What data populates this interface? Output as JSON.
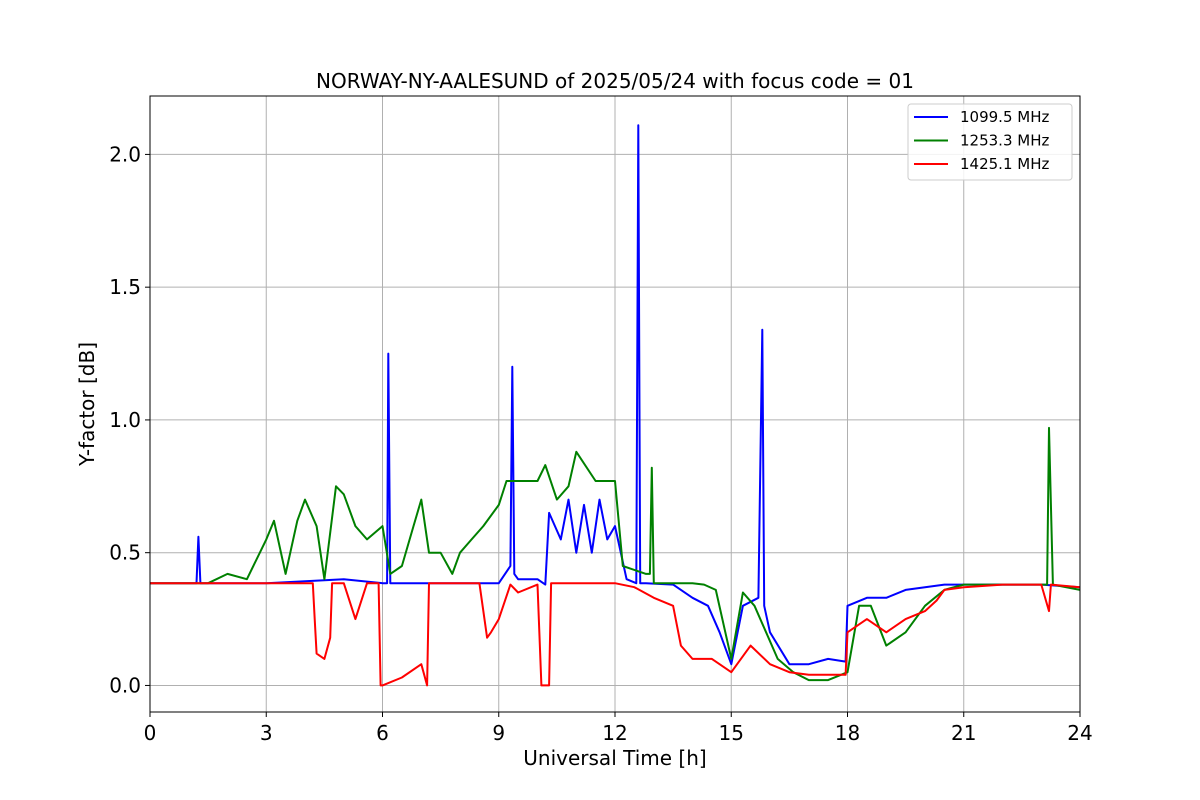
{
  "chart_data": {
    "type": "line",
    "title": "NORWAY-NY-AALESUND of 2025/05/24 with focus code = 01",
    "xlabel": "Universal Time [h]",
    "ylabel": "Y-factor [dB]",
    "xlim": [
      0,
      24
    ],
    "ylim": [
      -0.1,
      2.22
    ],
    "xticks": [
      0,
      3,
      6,
      9,
      12,
      15,
      18,
      21,
      24
    ],
    "yticks": [
      0.0,
      0.5,
      1.0,
      1.5,
      2.0
    ],
    "xtick_labels": [
      "0",
      "3",
      "6",
      "9",
      "12",
      "15",
      "18",
      "21",
      "24"
    ],
    "ytick_labels": [
      "0.0",
      "0.5",
      "1.0",
      "1.5",
      "2.0"
    ],
    "grid": true,
    "legend_position": "top-right",
    "series": [
      {
        "name": "1099.5 MHz",
        "color": "#0000ff",
        "x": [
          0,
          1.2,
          1.25,
          1.3,
          3.0,
          5.0,
          6.0,
          6.12,
          6.15,
          6.2,
          9.0,
          9.3,
          9.35,
          9.4,
          9.5,
          10.0,
          10.2,
          10.3,
          10.6,
          10.8,
          11.0,
          11.2,
          11.4,
          11.6,
          11.8,
          12.0,
          12.3,
          12.55,
          12.6,
          12.65,
          12.8,
          13.5,
          14.0,
          14.4,
          14.7,
          15.0,
          15.3,
          15.7,
          15.8,
          15.85,
          16.0,
          16.5,
          17.0,
          17.5,
          17.95,
          18.0,
          18.5,
          19.0,
          19.5,
          20.0,
          20.5,
          21.0,
          22.0,
          23.0,
          24.0
        ],
        "y": [
          0.385,
          0.385,
          0.56,
          0.385,
          0.385,
          0.4,
          0.385,
          0.385,
          1.25,
          0.385,
          0.385,
          0.45,
          1.2,
          0.42,
          0.4,
          0.4,
          0.38,
          0.65,
          0.55,
          0.7,
          0.5,
          0.68,
          0.5,
          0.7,
          0.55,
          0.6,
          0.4,
          0.385,
          2.11,
          0.385,
          0.385,
          0.38,
          0.33,
          0.3,
          0.2,
          0.08,
          0.3,
          0.33,
          1.34,
          0.3,
          0.2,
          0.08,
          0.08,
          0.1,
          0.09,
          0.3,
          0.33,
          0.33,
          0.36,
          0.37,
          0.38,
          0.38,
          0.38,
          0.38,
          0.37
        ]
      },
      {
        "name": "1253.3 MHz",
        "color": "#008000",
        "x": [
          0,
          1.5,
          2.0,
          2.5,
          3.0,
          3.2,
          3.5,
          3.8,
          4.0,
          4.3,
          4.5,
          4.8,
          5.0,
          5.3,
          5.6,
          6.0,
          6.2,
          6.5,
          6.8,
          7.0,
          7.2,
          7.5,
          7.8,
          8.0,
          8.3,
          8.6,
          9.0,
          9.2,
          10.0,
          10.2,
          10.5,
          10.8,
          11.0,
          11.5,
          12.0,
          12.2,
          12.8,
          12.9,
          12.95,
          13.0,
          13.5,
          14.0,
          14.3,
          14.6,
          15.0,
          15.3,
          15.6,
          15.9,
          16.2,
          16.6,
          17.0,
          17.5,
          18.0,
          18.3,
          18.6,
          19.0,
          19.5,
          20.0,
          20.5,
          21.0,
          22.0,
          23.0,
          23.15,
          23.2,
          23.3,
          24.0
        ],
        "y": [
          0.385,
          0.385,
          0.42,
          0.4,
          0.55,
          0.62,
          0.42,
          0.62,
          0.7,
          0.6,
          0.4,
          0.75,
          0.72,
          0.6,
          0.55,
          0.6,
          0.42,
          0.45,
          0.6,
          0.7,
          0.5,
          0.5,
          0.42,
          0.5,
          0.55,
          0.6,
          0.68,
          0.77,
          0.77,
          0.83,
          0.7,
          0.75,
          0.88,
          0.77,
          0.77,
          0.45,
          0.42,
          0.42,
          0.82,
          0.385,
          0.385,
          0.385,
          0.38,
          0.36,
          0.1,
          0.35,
          0.3,
          0.2,
          0.1,
          0.05,
          0.02,
          0.02,
          0.05,
          0.3,
          0.3,
          0.15,
          0.2,
          0.3,
          0.36,
          0.38,
          0.38,
          0.38,
          0.38,
          0.97,
          0.38,
          0.36
        ]
      },
      {
        "name": "1425.1 MHz",
        "color": "#ff0000",
        "x": [
          0,
          3.0,
          4.2,
          4.25,
          4.3,
          4.5,
          4.65,
          4.7,
          4.8,
          5.0,
          5.3,
          5.6,
          5.9,
          5.95,
          6.0,
          6.5,
          7.0,
          7.15,
          7.2,
          8.0,
          8.5,
          8.7,
          8.8,
          9.0,
          9.3,
          9.5,
          10.0,
          10.1,
          10.15,
          10.3,
          10.35,
          11.0,
          12.0,
          12.5,
          13.0,
          13.5,
          13.7,
          14.0,
          14.5,
          15.0,
          15.5,
          16.0,
          16.5,
          17.0,
          17.5,
          17.95,
          18.0,
          18.5,
          19.0,
          19.5,
          20.0,
          20.3,
          20.5,
          21.0,
          22.0,
          23.0,
          23.2,
          23.25,
          24.0
        ],
        "y": [
          0.385,
          0.385,
          0.385,
          0.25,
          0.12,
          0.1,
          0.18,
          0.385,
          0.385,
          0.385,
          0.25,
          0.385,
          0.385,
          0.0,
          0.0,
          0.03,
          0.08,
          0.0,
          0.385,
          0.385,
          0.385,
          0.18,
          0.2,
          0.25,
          0.38,
          0.35,
          0.38,
          0.0,
          0.0,
          0.0,
          0.385,
          0.385,
          0.385,
          0.37,
          0.33,
          0.3,
          0.15,
          0.1,
          0.1,
          0.05,
          0.15,
          0.08,
          0.05,
          0.04,
          0.04,
          0.04,
          0.2,
          0.25,
          0.2,
          0.25,
          0.28,
          0.32,
          0.36,
          0.37,
          0.38,
          0.38,
          0.28,
          0.38,
          0.37
        ]
      }
    ]
  }
}
